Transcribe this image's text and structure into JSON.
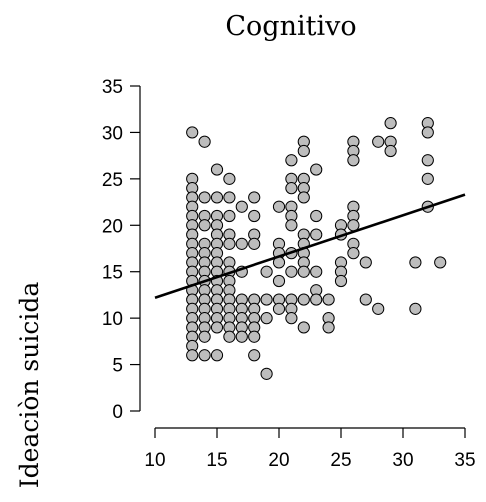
{
  "chart_data": {
    "type": "scatter",
    "title": "Cognitivo",
    "xlabel": "",
    "ylabel": "Ideaciòn suicida",
    "xlim": [
      10,
      35
    ],
    "ylim": [
      0,
      35
    ],
    "xticks": [
      10,
      15,
      20,
      25,
      30,
      35
    ],
    "yticks": [
      0,
      5,
      10,
      15,
      20,
      25,
      30,
      35
    ],
    "xtick_labels": [
      "10",
      "15",
      "20",
      "25",
      "30",
      "35"
    ],
    "ytick_labels": [
      "0",
      "5",
      "10",
      "15",
      "20",
      "25",
      "30",
      "35"
    ],
    "grid": false,
    "legend": "none",
    "point_fill": "#bdbdbd",
    "point_stroke": "#000000",
    "regression_line": {
      "x": [
        10,
        35
      ],
      "y": [
        12.2,
        23.3
      ]
    },
    "points": [
      [
        13,
        30
      ],
      [
        13,
        25
      ],
      [
        13,
        24
      ],
      [
        13,
        23
      ],
      [
        13,
        22
      ],
      [
        13,
        21
      ],
      [
        13,
        20
      ],
      [
        13,
        19
      ],
      [
        13,
        18
      ],
      [
        13,
        17
      ],
      [
        13,
        16
      ],
      [
        13,
        15
      ],
      [
        13,
        14
      ],
      [
        13,
        13
      ],
      [
        13,
        12
      ],
      [
        13,
        11
      ],
      [
        13,
        10
      ],
      [
        13,
        9
      ],
      [
        13,
        8
      ],
      [
        13,
        7
      ],
      [
        13,
        6
      ],
      [
        14,
        29
      ],
      [
        14,
        23
      ],
      [
        14,
        21
      ],
      [
        14,
        20
      ],
      [
        14,
        18
      ],
      [
        14,
        17
      ],
      [
        14,
        16
      ],
      [
        14,
        15
      ],
      [
        14,
        14
      ],
      [
        14,
        13
      ],
      [
        14,
        12
      ],
      [
        14,
        11
      ],
      [
        14,
        10
      ],
      [
        14,
        9
      ],
      [
        14,
        8
      ],
      [
        14,
        6
      ],
      [
        15,
        26
      ],
      [
        15,
        23
      ],
      [
        15,
        21
      ],
      [
        15,
        20
      ],
      [
        15,
        19
      ],
      [
        15,
        18
      ],
      [
        15,
        17
      ],
      [
        15,
        16
      ],
      [
        15,
        15
      ],
      [
        15,
        14
      ],
      [
        15,
        13
      ],
      [
        15,
        12
      ],
      [
        15,
        11
      ],
      [
        15,
        10
      ],
      [
        15,
        9
      ],
      [
        15,
        6
      ],
      [
        16,
        25
      ],
      [
        16,
        23
      ],
      [
        16,
        21
      ],
      [
        16,
        19
      ],
      [
        16,
        18
      ],
      [
        16,
        16
      ],
      [
        16,
        15
      ],
      [
        16,
        14
      ],
      [
        16,
        13
      ],
      [
        16,
        12
      ],
      [
        16,
        11
      ],
      [
        16,
        10
      ],
      [
        16,
        9
      ],
      [
        16,
        8
      ],
      [
        17,
        22
      ],
      [
        17,
        18
      ],
      [
        17,
        15
      ],
      [
        17,
        12
      ],
      [
        17,
        11
      ],
      [
        17,
        10
      ],
      [
        17,
        9
      ],
      [
        17,
        8
      ],
      [
        18,
        23
      ],
      [
        18,
        21
      ],
      [
        18,
        19
      ],
      [
        18,
        18
      ],
      [
        18,
        12
      ],
      [
        18,
        11
      ],
      [
        18,
        10
      ],
      [
        18,
        9
      ],
      [
        18,
        8
      ],
      [
        18,
        6
      ],
      [
        19,
        15
      ],
      [
        19,
        12
      ],
      [
        19,
        10
      ],
      [
        19,
        4
      ],
      [
        20,
        22
      ],
      [
        20,
        18
      ],
      [
        20,
        17
      ],
      [
        20,
        16
      ],
      [
        20,
        14
      ],
      [
        20,
        12
      ],
      [
        20,
        11
      ],
      [
        21,
        27
      ],
      [
        21,
        25
      ],
      [
        21,
        24
      ],
      [
        21,
        22
      ],
      [
        21,
        21
      ],
      [
        21,
        20
      ],
      [
        21,
        17
      ],
      [
        21,
        15
      ],
      [
        21,
        12
      ],
      [
        21,
        11
      ],
      [
        21,
        10
      ],
      [
        22,
        29
      ],
      [
        22,
        28
      ],
      [
        22,
        25
      ],
      [
        22,
        24
      ],
      [
        22,
        23
      ],
      [
        22,
        19
      ],
      [
        22,
        18
      ],
      [
        22,
        17
      ],
      [
        22,
        16
      ],
      [
        22,
        15
      ],
      [
        22,
        12
      ],
      [
        22,
        9
      ],
      [
        23,
        26
      ],
      [
        23,
        21
      ],
      [
        23,
        19
      ],
      [
        23,
        15
      ],
      [
        23,
        13
      ],
      [
        23,
        12
      ],
      [
        24,
        12
      ],
      [
        24,
        10
      ],
      [
        24,
        9
      ],
      [
        25,
        20
      ],
      [
        25,
        19
      ],
      [
        25,
        16
      ],
      [
        25,
        15
      ],
      [
        25,
        14
      ],
      [
        26,
        29
      ],
      [
        26,
        28
      ],
      [
        26,
        27
      ],
      [
        26,
        22
      ],
      [
        26,
        21
      ],
      [
        26,
        20
      ],
      [
        26,
        18
      ],
      [
        26,
        17
      ],
      [
        27,
        16
      ],
      [
        27,
        12
      ],
      [
        28,
        29
      ],
      [
        28,
        11
      ],
      [
        29,
        31
      ],
      [
        29,
        29
      ],
      [
        29,
        28
      ],
      [
        31,
        16
      ],
      [
        31,
        11
      ],
      [
        32,
        31
      ],
      [
        32,
        30
      ],
      [
        32,
        27
      ],
      [
        32,
        25
      ],
      [
        32,
        22
      ],
      [
        33,
        16
      ]
    ]
  }
}
